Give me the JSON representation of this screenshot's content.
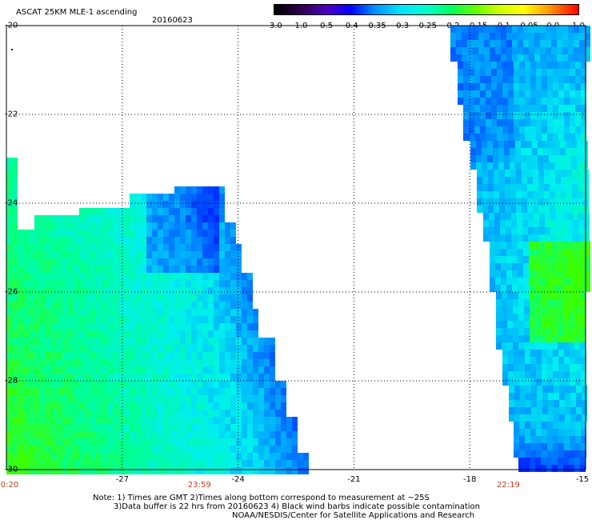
{
  "header": {
    "title": "ASCAT 25KM MLE-1 ascending",
    "date": "20160623"
  },
  "colorbar": {
    "labels": [
      "-3.0",
      "-1.0",
      "-0.5",
      "-0.4",
      "-0.35",
      "-0.3",
      "-0.25",
      "-0.2",
      "-0.15",
      "-0.1",
      "-0.05",
      "0.0",
      "1.0"
    ],
    "colors": [
      "#000000",
      "#2a0060",
      "#5a00c0",
      "#0000ff",
      "#0060ff",
      "#00c0ff",
      "#00ffe0",
      "#00ff80",
      "#40ff00",
      "#c0ff00",
      "#ffff00",
      "#ff8000",
      "#ff0000"
    ]
  },
  "map": {
    "lat_labels": [
      "-20",
      "-22",
      "-24",
      "-26",
      "-28",
      "-30"
    ],
    "lon_labels": [
      "-27",
      "-24",
      "-21",
      "-18",
      "-15"
    ],
    "lat_range": [
      -30,
      -20
    ],
    "lon_range": [
      -30,
      -15
    ],
    "time_labels": [
      "0:20",
      "23:59",
      "22:19"
    ],
    "time_lons": [
      -30,
      -25,
      -17
    ]
  },
  "notes": {
    "line1": "Note: 1) Times are GMT 2)Times along bottom correspond to measurement at ~25S",
    "line2": "3)Data buffer is 22 hrs from 20160623 4) Black wind barbs indicate possible contamination",
    "line3": "NOAA/NESDIS/Center for Satellite Applications and Research"
  }
}
